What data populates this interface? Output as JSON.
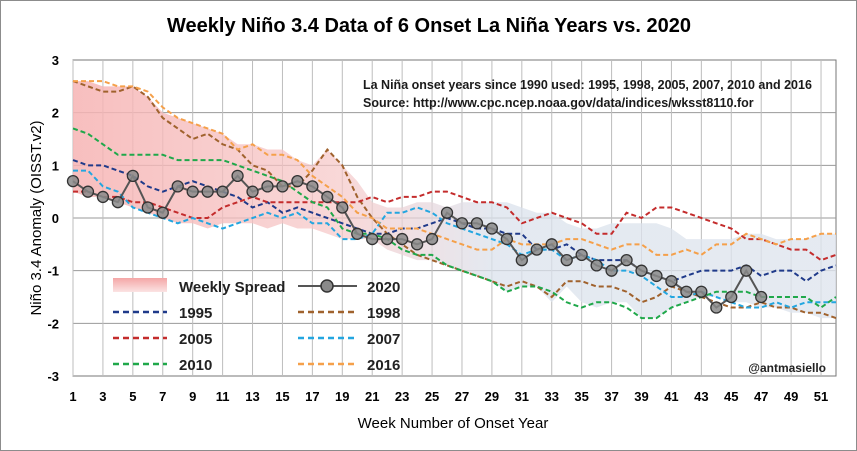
{
  "chart_data": {
    "type": "line",
    "title": "Weekly Niño 3.4 Data of 6 Onset La Niña Years vs. 2020",
    "xlabel": "Week Number of Onset Year",
    "ylabel": "Niño 3.4 Anomaly (OISST.v2)",
    "xlim": [
      1,
      52
    ],
    "ylim": [
      -3,
      3
    ],
    "xticks": [
      1,
      3,
      5,
      7,
      9,
      11,
      13,
      15,
      17,
      19,
      21,
      23,
      25,
      27,
      29,
      31,
      33,
      35,
      37,
      39,
      41,
      43,
      45,
      47,
      49,
      51
    ],
    "yticks": [
      -3,
      -2,
      -1,
      0,
      1,
      2,
      3
    ],
    "note_line1": "La Niña onset years since 1990 used: 1995, 1998, 2005, 2007, 2010 and 2016",
    "note_line2": "Source: http://www.cpc.ncep.noaa.gov/data/indices/wksst8110.for",
    "credit": "@antmasiello",
    "spread": {
      "name": "Weekly Spread",
      "color": "#f4a6a6",
      "upper": [
        2.6,
        2.6,
        2.5,
        2.5,
        2.5,
        2.3,
        2.0,
        1.9,
        1.8,
        1.7,
        1.6,
        1.4,
        1.4,
        1.3,
        1.3,
        1.1,
        1.0,
        1.3,
        1.0,
        0.7,
        0.3,
        0.2,
        0.2,
        0.3,
        0.3,
        0.2,
        0.3,
        0.3,
        0.3,
        0.3,
        0.2,
        0.1,
        0.1,
        -0.1,
        -0.2,
        -0.2,
        -0.1,
        -0.1,
        -0.1,
        -0.1,
        -0.2,
        -0.4,
        -0.4,
        -0.4,
        -0.4,
        -0.3,
        -0.3,
        -0.4,
        -0.4,
        -0.4,
        -0.3,
        -0.3
      ],
      "lower": [
        0.5,
        0.4,
        0.4,
        0.3,
        0.2,
        0.1,
        0.0,
        -0.1,
        -0.1,
        -0.2,
        -0.1,
        -0.1,
        -0.1,
        -0.2,
        -0.1,
        -0.2,
        -0.2,
        -0.3,
        -0.4,
        -0.4,
        -0.4,
        -0.6,
        -0.7,
        -0.8,
        -0.8,
        -0.9,
        -1.0,
        -1.1,
        -1.2,
        -1.4,
        -1.3,
        -1.3,
        -1.6,
        -1.3,
        -1.6,
        -1.7,
        -1.6,
        -1.6,
        -1.9,
        -1.9,
        -1.7,
        -1.6,
        -1.5,
        -1.5,
        -1.6,
        -1.6,
        -1.7,
        -1.7,
        -1.8,
        -1.8,
        -1.9,
        -1.9
      ]
    },
    "series": [
      {
        "name": "1995",
        "color": "#1f3a8a",
        "values": [
          1.1,
          1.0,
          1.0,
          0.9,
          0.8,
          0.6,
          0.5,
          0.6,
          0.7,
          0.6,
          0.5,
          0.4,
          0.2,
          0.3,
          0.1,
          0.2,
          0.1,
          0.0,
          -0.1,
          -0.2,
          -0.3,
          -0.3,
          -0.2,
          -0.2,
          -0.1,
          0.0,
          -0.1,
          -0.2,
          -0.2,
          -0.3,
          -0.3,
          -0.6,
          -0.6,
          -0.5,
          -0.7,
          -0.8,
          -0.8,
          -0.8,
          -1.0,
          -1.1,
          -1.2,
          -1.1,
          -1.0,
          -1.0,
          -1.0,
          -0.9,
          -1.1,
          -1.0,
          -1.0,
          -1.2,
          -1.0,
          -0.9
        ]
      },
      {
        "name": "1998",
        "color": "#a0622d",
        "values": [
          2.6,
          2.5,
          2.4,
          2.4,
          2.5,
          2.3,
          1.9,
          1.7,
          1.5,
          1.6,
          1.4,
          1.3,
          1.0,
          0.9,
          0.6,
          0.6,
          0.9,
          1.3,
          1.0,
          0.4,
          0.0,
          -0.3,
          -0.5,
          -0.7,
          -0.8,
          -0.9,
          -1.0,
          -1.1,
          -1.2,
          -1.3,
          -1.2,
          -1.3,
          -1.5,
          -1.2,
          -1.2,
          -1.3,
          -1.3,
          -1.4,
          -1.6,
          -1.5,
          -1.3,
          -1.4,
          -1.5,
          -1.6,
          -1.7,
          -1.7,
          -1.6,
          -1.7,
          -1.7,
          -1.8,
          -1.8,
          -1.9
        ]
      },
      {
        "name": "2005",
        "color": "#c42c2c",
        "values": [
          0.5,
          0.5,
          0.4,
          0.4,
          0.3,
          0.3,
          0.2,
          0.1,
          0.0,
          0.0,
          0.2,
          0.3,
          0.4,
          0.3,
          0.3,
          0.3,
          0.3,
          0.3,
          0.3,
          0.3,
          0.4,
          0.3,
          0.4,
          0.4,
          0.5,
          0.5,
          0.4,
          0.3,
          0.3,
          0.2,
          -0.1,
          0.0,
          0.1,
          0.0,
          -0.1,
          -0.3,
          -0.3,
          0.1,
          0.0,
          0.2,
          0.2,
          0.1,
          0.0,
          -0.1,
          -0.2,
          -0.4,
          -0.4,
          -0.5,
          -0.6,
          -0.6,
          -0.8,
          -0.7
        ]
      },
      {
        "name": "2007",
        "color": "#23a6e0",
        "values": [
          0.9,
          0.9,
          0.6,
          0.5,
          0.2,
          0.1,
          0.0,
          -0.1,
          0.0,
          -0.1,
          -0.2,
          -0.1,
          0.0,
          0.1,
          0.0,
          0.1,
          -0.1,
          -0.1,
          -0.4,
          -0.4,
          -0.3,
          0.1,
          0.1,
          0.2,
          0.1,
          -0.1,
          -0.2,
          -0.3,
          -0.4,
          -0.5,
          -0.7,
          -0.6,
          -0.6,
          -0.8,
          -0.7,
          -0.8,
          -1.0,
          -1.0,
          -1.1,
          -1.3,
          -1.5,
          -1.5,
          -1.4,
          -1.5,
          -1.6,
          -1.7,
          -1.7,
          -1.6,
          -1.7,
          -1.6,
          -1.6,
          -1.6
        ]
      },
      {
        "name": "2010",
        "color": "#1fa84a",
        "values": [
          1.7,
          1.6,
          1.4,
          1.2,
          1.2,
          1.2,
          1.2,
          1.1,
          1.1,
          1.1,
          1.1,
          1.0,
          0.9,
          0.8,
          0.7,
          0.5,
          0.3,
          0.2,
          -0.2,
          -0.3,
          -0.3,
          -0.4,
          -0.6,
          -0.7,
          -0.7,
          -0.9,
          -1.0,
          -1.1,
          -1.2,
          -1.4,
          -1.3,
          -1.3,
          -1.4,
          -1.6,
          -1.7,
          -1.6,
          -1.6,
          -1.7,
          -1.9,
          -1.9,
          -1.7,
          -1.6,
          -1.5,
          -1.4,
          -1.4,
          -1.4,
          -1.5,
          -1.5,
          -1.5,
          -1.5,
          -1.7,
          -1.5
        ]
      },
      {
        "name": "2016",
        "color": "#f5a04a",
        "values": [
          2.6,
          2.6,
          2.6,
          2.5,
          2.5,
          2.4,
          2.1,
          1.9,
          1.8,
          1.7,
          1.6,
          1.3,
          1.4,
          1.2,
          1.2,
          1.1,
          0.8,
          0.6,
          0.4,
          0.1,
          0.0,
          -0.2,
          -0.2,
          -0.2,
          -0.3,
          -0.4,
          -0.5,
          -0.6,
          -0.6,
          -0.4,
          -0.5,
          -0.5,
          -0.5,
          -0.4,
          -0.4,
          -0.5,
          -0.6,
          -0.5,
          -0.5,
          -0.7,
          -0.7,
          -0.6,
          -0.7,
          -0.5,
          -0.5,
          -0.3,
          -0.4,
          -0.5,
          -0.4,
          -0.4,
          -0.3,
          -0.3
        ]
      },
      {
        "name": "2020",
        "color": "#333333",
        "marker": true,
        "values": [
          0.7,
          0.5,
          0.4,
          0.3,
          0.8,
          0.2,
          0.1,
          0.6,
          0.5,
          0.5,
          0.5,
          0.8,
          0.5,
          0.6,
          0.6,
          0.7,
          0.6,
          0.4,
          0.2,
          -0.3,
          -0.4,
          -0.4,
          -0.4,
          -0.5,
          -0.4,
          0.1,
          -0.1,
          -0.1,
          -0.2,
          -0.4,
          -0.8,
          -0.6,
          -0.5,
          -0.8,
          -0.7,
          -0.9,
          -1.0,
          -0.8,
          -1.0,
          -1.1,
          -1.2,
          -1.4,
          -1.4,
          -1.7,
          -1.5,
          -1.0,
          -1.5
        ]
      }
    ],
    "legend": {
      "position": "bottom-left",
      "entries": [
        "Weekly Spread",
        "2020",
        "1995",
        "1998",
        "2005",
        "2007",
        "2010",
        "2016"
      ]
    }
  }
}
